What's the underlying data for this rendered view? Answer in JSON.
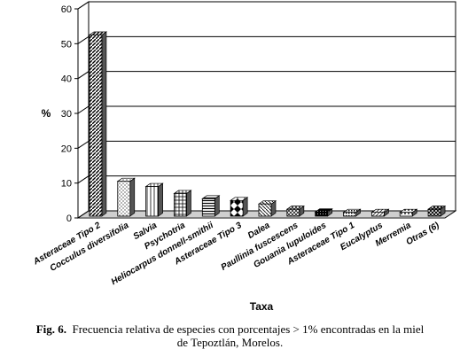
{
  "chart_data": {
    "type": "bar",
    "title": "",
    "xlabel": "Taxa",
    "ylabel": "%",
    "ylim": [
      0,
      60
    ],
    "yticks": [
      0,
      10,
      20,
      30,
      40,
      50,
      60
    ],
    "grid": true,
    "categories": [
      "Asteraceae Tipo 2",
      "Cocculus diversifolia",
      "Salvia",
      "Psychotria",
      "Heliocarpus donnell-smithii",
      "Asteraceae Tipo 3",
      "Dalea",
      "Paullinia fuscescens",
      "Gouania lupuloides",
      "Asteraceae Tipo 1",
      "Eucalyptus",
      "Merremia",
      "Otras (6)"
    ],
    "values": [
      52,
      10,
      8.5,
      6.5,
      5,
      4.5,
      3.5,
      2,
      1.2,
      1.1,
      1.1,
      1.1,
      2
    ]
  },
  "caption": {
    "label": "Fig. 6.",
    "text": "Frecuencia relativa de especies con porcentajes > 1% encontradas en la miel",
    "text2": "de Tepoztlán, Morelos."
  }
}
